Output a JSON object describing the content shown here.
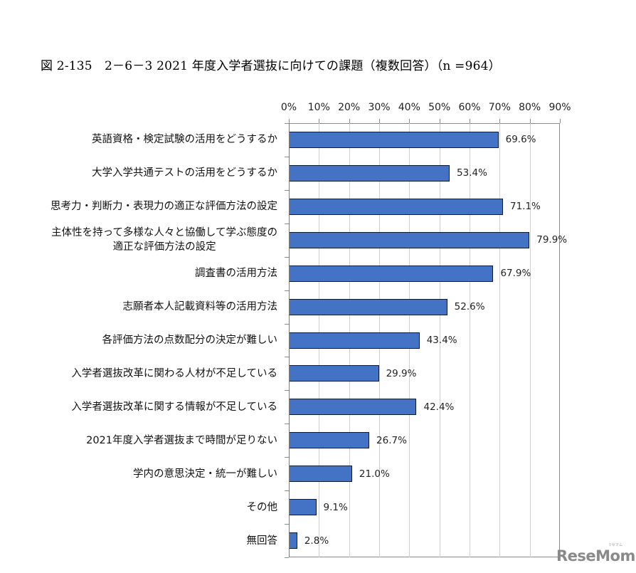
{
  "header": {
    "title": "図 2-135　2－6－3 2021 年度入学者選抜に向けての課題（複数回答）（n =964）"
  },
  "watermark": {
    "logo": "ReseMom",
    "logo_sub": "リセマム"
  },
  "colors": {
    "bar_fill": "#4472c4",
    "bar_border": "#0d1a33",
    "gridline": "#cfcfcf",
    "logo": "#8a8a8a"
  },
  "chart_data": {
    "type": "bar",
    "orientation": "horizontal",
    "title": "図 2-135　2－6－3 2021 年度入学者選抜に向けての課題（複数回答）（n =964）",
    "xlabel": "",
    "ylabel": "",
    "xlim": [
      0,
      90
    ],
    "x_ticks": [
      "0%",
      "10%",
      "20%",
      "30%",
      "40%",
      "50%",
      "60%",
      "70%",
      "80%",
      "90%"
    ],
    "x_axis_position": "top",
    "grid": true,
    "legend": null,
    "categories": [
      "英語資格・検定試験の活用をどうするか",
      "大学入学共通テストの活用をどうするか",
      "思考力・判断力・表現力の適正な評価方法の設定",
      "主体性を持って多様な人々と協働して学ぶ態度の\n適正な評価方法の設定",
      "調査書の活用方法",
      "志願者本人記載資料等の活用方法",
      "各評価方法の点数配分の決定が難しい",
      "入学者選抜改革に関わる人材が不足している",
      "入学者選抜改革に関する情報が不足している",
      "2021年度入学者選抜まで時間が足りない",
      "学内の意思決定・統一が難しい",
      "その他",
      "無回答"
    ],
    "values": [
      69.6,
      53.4,
      71.1,
      79.9,
      67.9,
      52.6,
      43.4,
      29.9,
      42.4,
      26.7,
      21.0,
      9.1,
      2.8
    ],
    "value_labels": [
      "69.6%",
      "53.4%",
      "71.1%",
      "79.9%",
      "67.9%",
      "52.6%",
      "43.4%",
      "29.9%",
      "42.4%",
      "26.7%",
      "21.0%",
      "9.1%",
      "2.8%"
    ]
  }
}
